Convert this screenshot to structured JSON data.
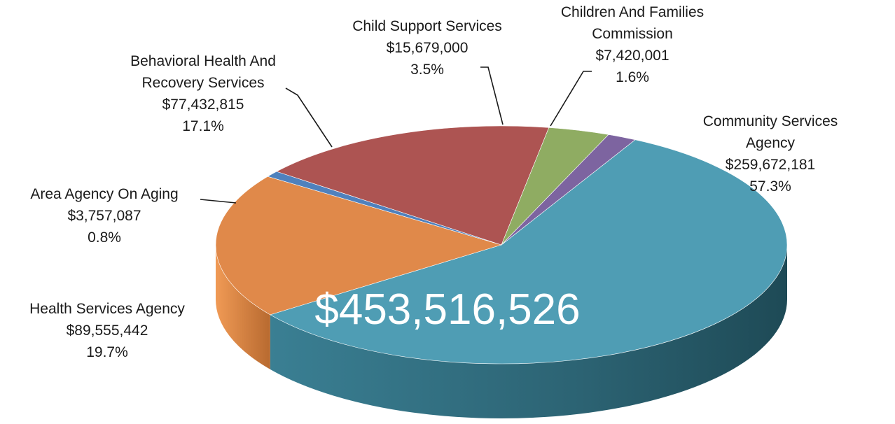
{
  "chart_data": {
    "type": "pie",
    "style": "3d",
    "total_label": "$453,516,526",
    "slices": [
      {
        "name": "Community Services Agency",
        "value_label": "$259,672,181",
        "value": 259672181,
        "percent_label": "57.3%",
        "percent": 57.3,
        "color": "#4f9db4"
      },
      {
        "name": "Health Services Agency",
        "value_label": "$89,555,442",
        "value": 89555442,
        "percent_label": "19.7%",
        "percent": 19.7,
        "color": "#e0894a"
      },
      {
        "name": "Area Agency On Aging",
        "value_label": "$3,757,087",
        "value": 3757087,
        "percent_label": "0.8%",
        "percent": 0.8,
        "color": "#4f81bd"
      },
      {
        "name": "Behavioral Health And Recovery Services",
        "value_label": "$77,432,815",
        "value": 77432815,
        "percent_label": "17.1%",
        "percent": 17.1,
        "color": "#ad5452"
      },
      {
        "name": "Child Support Services",
        "value_label": "$15,679,000",
        "value": 15679000,
        "percent_label": "3.5%",
        "percent": 3.5,
        "color": "#8fac62"
      },
      {
        "name": "Children And Families Commission",
        "value_label": "$7,420,001",
        "value": 7420001,
        "percent_label": "1.6%",
        "percent": 1.6,
        "color": "#7d64a0"
      }
    ]
  }
}
